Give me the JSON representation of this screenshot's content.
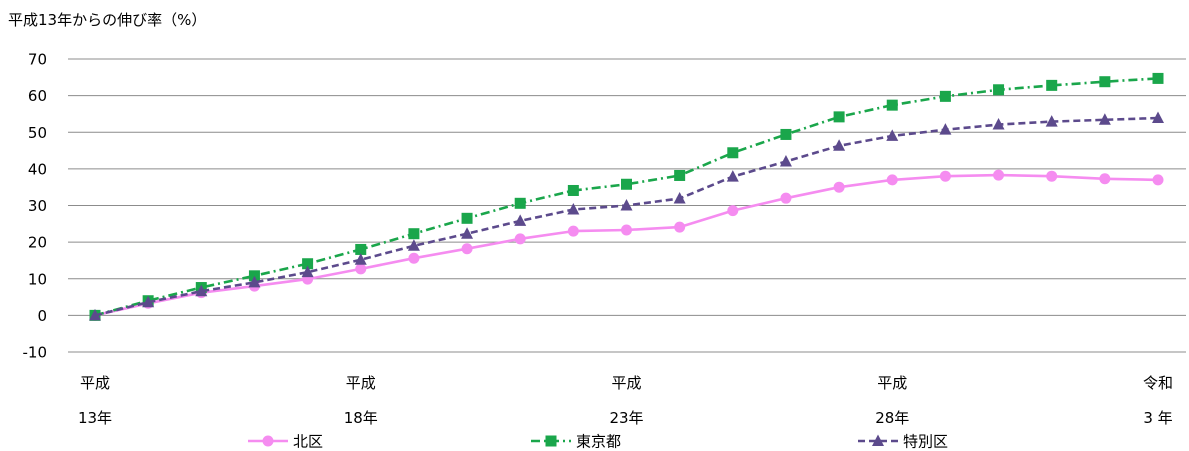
{
  "chart_data": {
    "type": "line",
    "ylabel": "平成13年からの伸び率（%）",
    "ylim": [
      -10,
      70
    ],
    "yticks": [
      -10,
      0,
      10,
      20,
      30,
      40,
      50,
      60,
      70
    ],
    "grid": true,
    "legend_position": "bottom",
    "x_tick_labels": [
      {
        "index": 0,
        "line1": "平成",
        "line2": "13年"
      },
      {
        "index": 5,
        "line1": "平成",
        "line2": "18年"
      },
      {
        "index": 10,
        "line1": "平成",
        "line2": "23年"
      },
      {
        "index": 15,
        "line1": "平成",
        "line2": "28年"
      },
      {
        "index": 20,
        "line1": "令和",
        "line2": "3 年"
      }
    ],
    "series": [
      {
        "name": "北区",
        "color": "#f58cf0",
        "marker": "circle",
        "dash": "solid",
        "values": [
          0,
          3.3,
          6.2,
          8.0,
          9.9,
          12.7,
          15.6,
          18.2,
          20.9,
          23.0,
          23.3,
          24.1,
          28.6,
          32.0,
          35.0,
          37.0,
          38.0,
          38.3,
          38.0,
          37.3,
          37.0
        ]
      },
      {
        "name": "東京都",
        "color": "#1aa64b",
        "marker": "square",
        "dash": "dashdot",
        "values": [
          0,
          4.0,
          7.6,
          10.8,
          14.1,
          18.0,
          22.3,
          26.5,
          30.6,
          34.1,
          35.8,
          38.2,
          44.4,
          49.4,
          54.2,
          57.4,
          59.8,
          61.6,
          62.8,
          63.8,
          64.7
        ]
      },
      {
        "name": "特別区",
        "color": "#5c4a8c",
        "marker": "triangle",
        "dash": "dashed",
        "values": [
          0,
          3.6,
          6.6,
          9.0,
          11.8,
          15.2,
          19.0,
          22.3,
          25.8,
          28.9,
          30.0,
          31.9,
          37.9,
          42.0,
          46.3,
          49.0,
          50.7,
          52.1,
          52.9,
          53.4,
          53.9
        ]
      }
    ]
  },
  "legend": {
    "items": [
      {
        "label": "北区"
      },
      {
        "label": "東京都"
      },
      {
        "label": "特別区"
      }
    ]
  }
}
